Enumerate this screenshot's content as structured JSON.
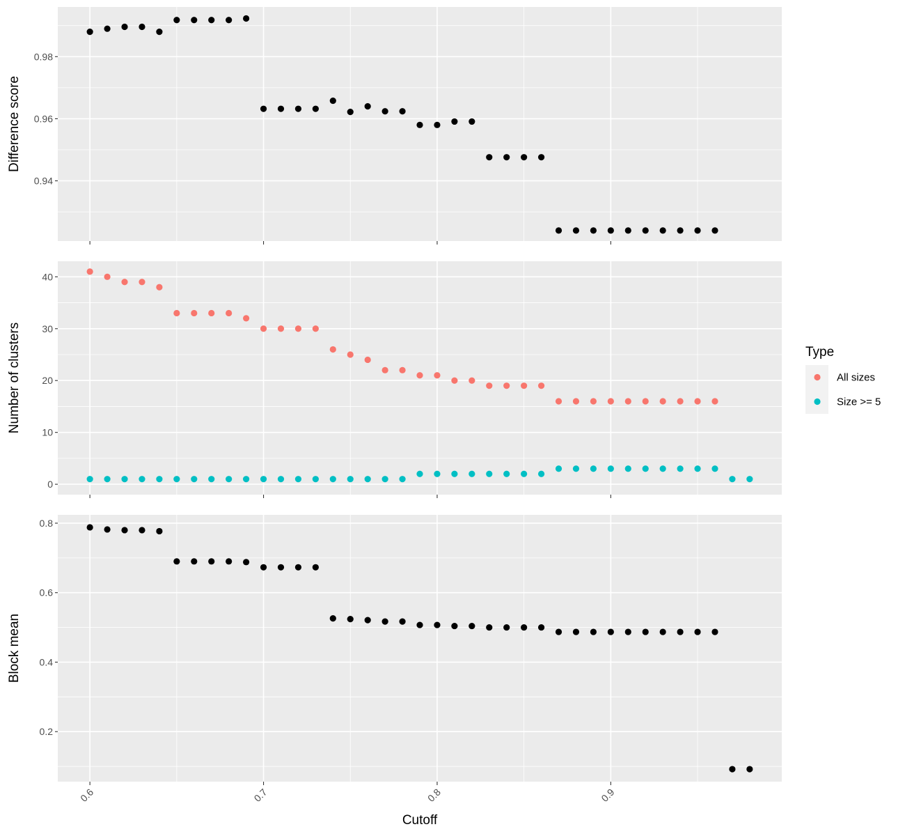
{
  "chart_data": {
    "type": "scatter",
    "xlabel": "Cutoff",
    "x_ticks": [
      0.6,
      0.7,
      0.8,
      0.9
    ],
    "xlim": [
      0.5815,
      0.9985
    ],
    "legend": {
      "title": "Type",
      "placement": "right",
      "entries": [
        {
          "label": "All sizes",
          "color": "#F8766D"
        },
        {
          "label": "Size >= 5",
          "color": "#00BFC4"
        }
      ]
    },
    "panels": [
      {
        "ylabel": "Difference score",
        "ylim": [
          0.9206,
          0.996
        ],
        "y_ticks": [
          0.94,
          0.96,
          0.98
        ],
        "series": [
          {
            "color": "#000000",
            "points": [
              [
                0.6,
                0.988
              ],
              [
                0.61,
                0.989
              ],
              [
                0.62,
                0.9896
              ],
              [
                0.63,
                0.9896
              ],
              [
                0.64,
                0.988
              ],
              [
                0.65,
                0.9918
              ],
              [
                0.66,
                0.9918
              ],
              [
                0.67,
                0.9918
              ],
              [
                0.68,
                0.9918
              ],
              [
                0.69,
                0.9923
              ],
              [
                0.7,
                0.9632
              ],
              [
                0.71,
                0.9632
              ],
              [
                0.72,
                0.9632
              ],
              [
                0.73,
                0.9632
              ],
              [
                0.74,
                0.9658
              ],
              [
                0.75,
                0.9622
              ],
              [
                0.76,
                0.964
              ],
              [
                0.77,
                0.9624
              ],
              [
                0.78,
                0.9624
              ],
              [
                0.79,
                0.958
              ],
              [
                0.8,
                0.958
              ],
              [
                0.81,
                0.9591
              ],
              [
                0.82,
                0.9591
              ],
              [
                0.83,
                0.9476
              ],
              [
                0.84,
                0.9476
              ],
              [
                0.85,
                0.9476
              ],
              [
                0.86,
                0.9476
              ],
              [
                0.87,
                0.924
              ],
              [
                0.88,
                0.924
              ],
              [
                0.89,
                0.924
              ],
              [
                0.9,
                0.924
              ],
              [
                0.91,
                0.924
              ],
              [
                0.92,
                0.924
              ],
              [
                0.93,
                0.924
              ],
              [
                0.94,
                0.924
              ],
              [
                0.95,
                0.924
              ],
              [
                0.96,
                0.924
              ]
            ]
          }
        ]
      },
      {
        "ylabel": "Number of clusters",
        "ylim": [
          -2.0,
          43.0
        ],
        "y_ticks": [
          0,
          10,
          20,
          30,
          40
        ],
        "series": [
          {
            "name": "All sizes",
            "color": "#F8766D",
            "points": [
              [
                0.6,
                41
              ],
              [
                0.61,
                40
              ],
              [
                0.62,
                39
              ],
              [
                0.63,
                39
              ],
              [
                0.64,
                38
              ],
              [
                0.65,
                33
              ],
              [
                0.66,
                33
              ],
              [
                0.67,
                33
              ],
              [
                0.68,
                33
              ],
              [
                0.69,
                32
              ],
              [
                0.7,
                30
              ],
              [
                0.71,
                30
              ],
              [
                0.72,
                30
              ],
              [
                0.73,
                30
              ],
              [
                0.74,
                26
              ],
              [
                0.75,
                25
              ],
              [
                0.76,
                24
              ],
              [
                0.77,
                22
              ],
              [
                0.78,
                22
              ],
              [
                0.79,
                21
              ],
              [
                0.8,
                21
              ],
              [
                0.81,
                20
              ],
              [
                0.82,
                20
              ],
              [
                0.83,
                19
              ],
              [
                0.84,
                19
              ],
              [
                0.85,
                19
              ],
              [
                0.86,
                19
              ],
              [
                0.87,
                16
              ],
              [
                0.88,
                16
              ],
              [
                0.89,
                16
              ],
              [
                0.9,
                16
              ],
              [
                0.91,
                16
              ],
              [
                0.92,
                16
              ],
              [
                0.93,
                16
              ],
              [
                0.94,
                16
              ],
              [
                0.95,
                16
              ],
              [
                0.96,
                16
              ]
            ]
          },
          {
            "name": "Size >= 5",
            "color": "#00BFC4",
            "points": [
              [
                0.6,
                1
              ],
              [
                0.61,
                1
              ],
              [
                0.62,
                1
              ],
              [
                0.63,
                1
              ],
              [
                0.64,
                1
              ],
              [
                0.65,
                1
              ],
              [
                0.66,
                1
              ],
              [
                0.67,
                1
              ],
              [
                0.68,
                1
              ],
              [
                0.69,
                1
              ],
              [
                0.7,
                1
              ],
              [
                0.71,
                1
              ],
              [
                0.72,
                1
              ],
              [
                0.73,
                1
              ],
              [
                0.74,
                1
              ],
              [
                0.75,
                1
              ],
              [
                0.76,
                1
              ],
              [
                0.77,
                1
              ],
              [
                0.78,
                1
              ],
              [
                0.79,
                2
              ],
              [
                0.8,
                2
              ],
              [
                0.81,
                2
              ],
              [
                0.82,
                2
              ],
              [
                0.83,
                2
              ],
              [
                0.84,
                2
              ],
              [
                0.85,
                2
              ],
              [
                0.86,
                2
              ],
              [
                0.87,
                3
              ],
              [
                0.88,
                3
              ],
              [
                0.89,
                3
              ],
              [
                0.9,
                3
              ],
              [
                0.91,
                3
              ],
              [
                0.92,
                3
              ],
              [
                0.93,
                3
              ],
              [
                0.94,
                3
              ],
              [
                0.95,
                3
              ],
              [
                0.96,
                3
              ],
              [
                0.97,
                1
              ],
              [
                0.98,
                1
              ]
            ]
          }
        ]
      },
      {
        "ylabel": "Block mean",
        "ylim": [
          0.056,
          0.824
        ],
        "y_ticks": [
          0.2,
          0.4,
          0.6,
          0.8
        ],
        "series": [
          {
            "color": "#000000",
            "points": [
              [
                0.6,
                0.788
              ],
              [
                0.61,
                0.782
              ],
              [
                0.62,
                0.78
              ],
              [
                0.63,
                0.78
              ],
              [
                0.64,
                0.777
              ],
              [
                0.65,
                0.69
              ],
              [
                0.66,
                0.69
              ],
              [
                0.67,
                0.69
              ],
              [
                0.68,
                0.69
              ],
              [
                0.69,
                0.688
              ],
              [
                0.7,
                0.673
              ],
              [
                0.71,
                0.673
              ],
              [
                0.72,
                0.673
              ],
              [
                0.73,
                0.673
              ],
              [
                0.74,
                0.526
              ],
              [
                0.75,
                0.524
              ],
              [
                0.76,
                0.521
              ],
              [
                0.77,
                0.517
              ],
              [
                0.78,
                0.517
              ],
              [
                0.79,
                0.507
              ],
              [
                0.8,
                0.507
              ],
              [
                0.81,
                0.504
              ],
              [
                0.82,
                0.504
              ],
              [
                0.83,
                0.5
              ],
              [
                0.84,
                0.5
              ],
              [
                0.85,
                0.5
              ],
              [
                0.86,
                0.5
              ],
              [
                0.87,
                0.487
              ],
              [
                0.88,
                0.487
              ],
              [
                0.89,
                0.487
              ],
              [
                0.9,
                0.487
              ],
              [
                0.91,
                0.487
              ],
              [
                0.92,
                0.487
              ],
              [
                0.93,
                0.487
              ],
              [
                0.94,
                0.487
              ],
              [
                0.95,
                0.487
              ],
              [
                0.96,
                0.487
              ],
              [
                0.97,
                0.092
              ],
              [
                0.98,
                0.092
              ]
            ]
          }
        ]
      }
    ]
  }
}
